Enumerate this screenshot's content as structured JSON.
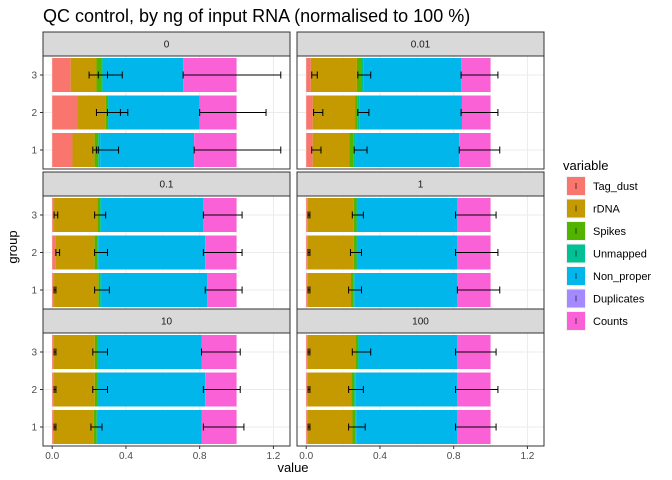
{
  "chart_data": {
    "type": "bar",
    "orientation": "horizontal",
    "stacked": true,
    "title": "QC control, by ng of input RNA (normalised to 100 %)",
    "xlabel": "value",
    "ylabel": "group",
    "xlim": [
      -0.05,
      1.29
    ],
    "xticks": [
      "0.0",
      "0.4",
      "0.8",
      "1.2"
    ],
    "xtick_values": [
      0.0,
      0.4,
      0.8,
      1.2
    ],
    "groups": [
      "1",
      "2",
      "3"
    ],
    "legend": {
      "title": "variable",
      "position": "right",
      "entries": [
        {
          "name": "Tag_dust",
          "color": "#F8766D"
        },
        {
          "name": "rDNA",
          "color": "#C49A00"
        },
        {
          "name": "Spikes",
          "color": "#53B400"
        },
        {
          "name": "Unmapped",
          "color": "#00C094"
        },
        {
          "name": "Non_proper",
          "color": "#00B6EB"
        },
        {
          "name": "Duplicates",
          "color": "#A58AFF"
        },
        {
          "name": "Counts",
          "color": "#FB61D7"
        }
      ]
    },
    "panels": [
      {
        "label": "0",
        "bars": [
          {
            "group": "1",
            "values": [
              0.11,
              0.12,
              0.02,
              0.01,
              0.51,
              0.0,
              0.23
            ],
            "errors": [
              [
                0.22,
                0.25
              ],
              [
                0.24,
                0.36
              ],
              [
                0.77,
                1.24
              ]
            ]
          },
          {
            "group": "2",
            "values": [
              0.14,
              0.15,
              0.01,
              0.005,
              0.495,
              0.0,
              0.2
            ],
            "errors": [
              [
                0.24,
                0.37
              ],
              [
                0.3,
                0.41
              ],
              [
                0.8,
                1.16
              ]
            ]
          },
          {
            "group": "3",
            "values": [
              0.1,
              0.14,
              0.025,
              0.01,
              0.435,
              0.0,
              0.29
            ],
            "errors": [
              [
                0.2,
                0.3
              ],
              [
                0.25,
                0.38
              ],
              [
                0.71,
                1.24
              ]
            ]
          }
        ]
      },
      {
        "label": "0.01",
        "bars": [
          {
            "group": "1",
            "values": [
              0.035,
              0.2,
              0.02,
              0.01,
              0.565,
              0.0,
              0.17
            ],
            "errors": [
              [
                0.03,
                0.08
              ],
              [
                0.26,
                0.33
              ],
              [
                0.83,
                1.05
              ]
            ]
          },
          {
            "group": "2",
            "values": [
              0.035,
              0.23,
              0.015,
              0.01,
              0.555,
              0.0,
              0.155
            ],
            "errors": [
              [
                0.04,
                0.09
              ],
              [
                0.28,
                0.34
              ],
              [
                0.84,
                1.04
              ]
            ]
          },
          {
            "group": "3",
            "values": [
              0.025,
              0.25,
              0.025,
              0.01,
              0.53,
              0.0,
              0.16
            ],
            "errors": [
              [
                0.03,
                0.06
              ],
              [
                0.28,
                0.35
              ],
              [
                0.84,
                1.04
              ]
            ]
          }
        ]
      },
      {
        "label": "0.1",
        "bars": [
          {
            "group": "1",
            "values": [
              0.01,
              0.24,
              0.01,
              0.005,
              0.575,
              0.0,
              0.16
            ],
            "errors": [
              [
                0.01,
                0.02
              ],
              [
                0.23,
                0.31
              ],
              [
                0.83,
                1.03
              ]
            ]
          },
          {
            "group": "2",
            "values": [
              0.02,
              0.21,
              0.015,
              0.005,
              0.58,
              0.0,
              0.17
            ],
            "errors": [
              [
                0.02,
                0.04
              ],
              [
                0.23,
                0.3
              ],
              [
                0.82,
                1.03
              ]
            ]
          },
          {
            "group": "3",
            "values": [
              0.01,
              0.235,
              0.015,
              0.005,
              0.555,
              0.0,
              0.18
            ],
            "errors": [
              [
                0.01,
                0.03
              ],
              [
                0.23,
                0.29
              ],
              [
                0.82,
                1.03
              ]
            ]
          }
        ]
      },
      {
        "label": "1",
        "bars": [
          {
            "group": "1",
            "values": [
              0.008,
              0.235,
              0.015,
              0.005,
              0.557,
              0.0,
              0.18
            ],
            "errors": [
              [
                0.01,
                0.02
              ],
              [
                0.23,
                0.3
              ],
              [
                0.82,
                1.05
              ]
            ]
          },
          {
            "group": "2",
            "values": [
              0.008,
              0.25,
              0.015,
              0.005,
              0.542,
              0.0,
              0.18
            ],
            "errors": [
              [
                0.01,
                0.02
              ],
              [
                0.24,
                0.3
              ],
              [
                0.81,
                1.04
              ]
            ]
          },
          {
            "group": "3",
            "values": [
              0.008,
              0.25,
              0.015,
              0.005,
              0.542,
              0.0,
              0.18
            ],
            "errors": [
              [
                0.01,
                0.02
              ],
              [
                0.25,
                0.31
              ],
              [
                0.81,
                1.03
              ]
            ]
          }
        ]
      },
      {
        "label": "10",
        "bars": [
          {
            "group": "1",
            "values": [
              0.006,
              0.22,
              0.015,
              0.005,
              0.564,
              0.0,
              0.19
            ],
            "errors": [
              [
                0.01,
                0.02
              ],
              [
                0.21,
                0.27
              ],
              [
                0.82,
                1.04
              ]
            ]
          },
          {
            "group": "2",
            "values": [
              0.006,
              0.225,
              0.015,
              0.005,
              0.579,
              0.0,
              0.17
            ],
            "errors": [
              [
                0.01,
                0.02
              ],
              [
                0.22,
                0.3
              ],
              [
                0.82,
                1.02
              ]
            ]
          },
          {
            "group": "3",
            "values": [
              0.006,
              0.225,
              0.015,
              0.005,
              0.559,
              0.0,
              0.19
            ],
            "errors": [
              [
                0.01,
                0.02
              ],
              [
                0.22,
                0.3
              ],
              [
                0.81,
                1.02
              ]
            ]
          }
        ]
      },
      {
        "label": "100",
        "bars": [
          {
            "group": "1",
            "values": [
              0.006,
              0.245,
              0.015,
              0.005,
              0.549,
              0.0,
              0.18
            ],
            "errors": [
              [
                0.01,
                0.02
              ],
              [
                0.23,
                0.32
              ],
              [
                0.81,
                1.03
              ]
            ]
          },
          {
            "group": "2",
            "values": [
              0.006,
              0.24,
              0.015,
              0.005,
              0.554,
              0.0,
              0.18
            ],
            "errors": [
              [
                0.01,
                0.02
              ],
              [
                0.23,
                0.31
              ],
              [
                0.81,
                1.04
              ]
            ]
          },
          {
            "group": "3",
            "values": [
              0.006,
              0.26,
              0.015,
              0.005,
              0.534,
              0.0,
              0.18
            ],
            "errors": [
              [
                0.01,
                0.02
              ],
              [
                0.25,
                0.35
              ],
              [
                0.81,
                1.03
              ]
            ]
          }
        ]
      }
    ]
  }
}
